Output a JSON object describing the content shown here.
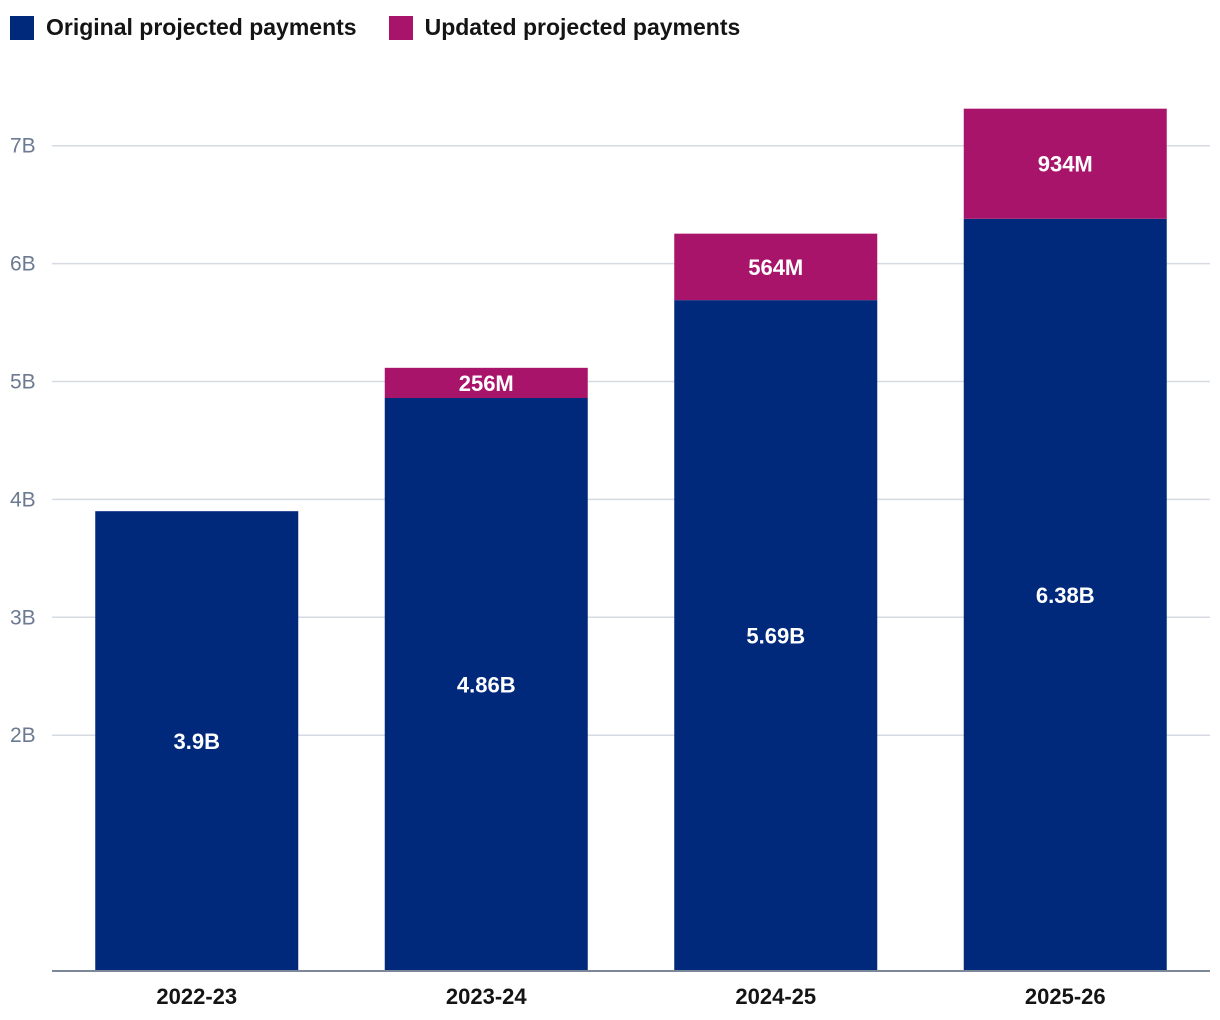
{
  "legend": {
    "items": [
      {
        "label": "Original projected payments",
        "color": "#00297c"
      },
      {
        "label": "Updated projected payments",
        "color": "#a8146a"
      }
    ]
  },
  "chart_data": {
    "type": "bar",
    "stacked": true,
    "categories": [
      "2022-23",
      "2023-24",
      "2024-25",
      "2025-26"
    ],
    "series": [
      {
        "name": "Original projected payments",
        "color": "#00297c",
        "values": [
          3.9,
          4.86,
          5.69,
          6.38
        ],
        "labels": [
          "3.9B",
          "4.86B",
          "5.69B",
          "6.38B"
        ]
      },
      {
        "name": "Updated projected payments",
        "color": "#a8146a",
        "values": [
          0,
          0.256,
          0.564,
          0.934
        ],
        "labels": [
          "",
          "256M",
          "564M",
          "934M"
        ]
      }
    ],
    "yticks": [
      2,
      3,
      4,
      5,
      6,
      7
    ],
    "ytick_labels": [
      "2B",
      "3B",
      "4B",
      "5B",
      "6B",
      "7B"
    ],
    "ylim": [
      0,
      7.5
    ],
    "grid": true,
    "legend_position": "top-left",
    "title": "",
    "xlabel": "",
    "ylabel": ""
  }
}
